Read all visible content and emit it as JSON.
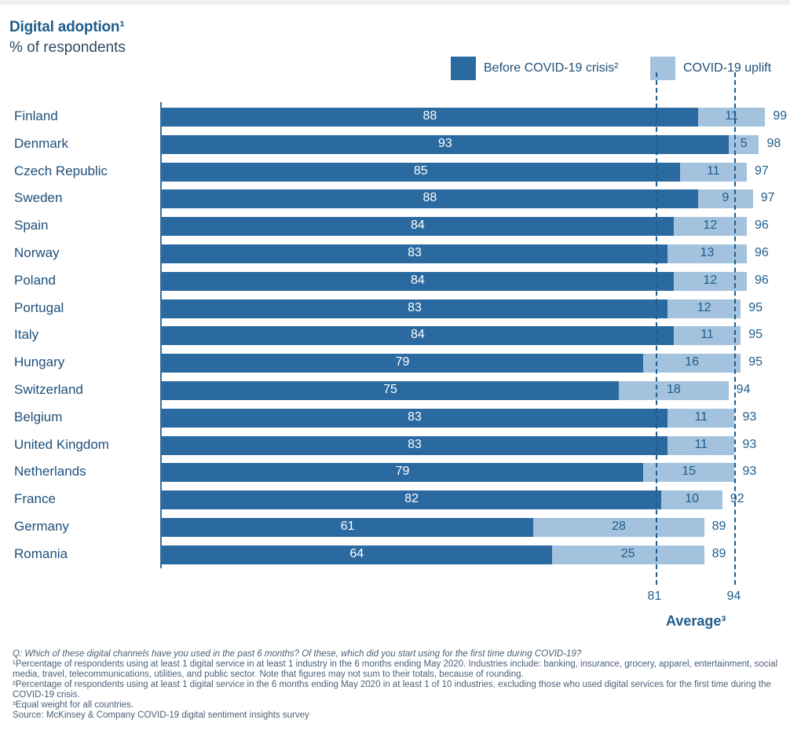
{
  "header": {
    "title": "Digital adoption¹",
    "subtitle": "% of respondents"
  },
  "legend": [
    {
      "label": "Before COVID-19 crisis²",
      "color": "#2b6aa0"
    },
    {
      "label": "COVID-19 uplift",
      "color": "#a3c2de"
    }
  ],
  "chart_data": {
    "type": "bar",
    "orientation": "horizontal",
    "stacked": true,
    "categories": [
      "Finland",
      "Denmark",
      "Czech Republic",
      "Sweden",
      "Spain",
      "Norway",
      "Poland",
      "Portugal",
      "Italy",
      "Hungary",
      "Switzerland",
      "Belgium",
      "United Kingdom",
      "Netherlands",
      "France",
      "Germany",
      "Romania"
    ],
    "series": [
      {
        "name": "Before COVID-19 crisis²",
        "color": "#2b6aa0",
        "values": [
          88,
          93,
          85,
          88,
          84,
          83,
          84,
          83,
          84,
          79,
          75,
          83,
          83,
          79,
          82,
          61,
          64
        ]
      },
      {
        "name": "COVID-19 uplift",
        "color": "#a3c2de",
        "values": [
          11,
          5,
          11,
          9,
          12,
          13,
          12,
          12,
          11,
          16,
          18,
          11,
          11,
          15,
          10,
          28,
          25
        ]
      }
    ],
    "totals": [
      99,
      98,
      97,
      97,
      96,
      96,
      96,
      95,
      95,
      95,
      94,
      93,
      93,
      93,
      92,
      89,
      89
    ],
    "averages": [
      {
        "value": 81,
        "label": "81"
      },
      {
        "value": 94,
        "label": "94"
      }
    ],
    "average_title": "Average³",
    "legend_position": "top-right",
    "grid": false
  },
  "footnotes": {
    "question": "Q: Which of these digital channels have you used in the past 6 months? Of these, which did you start using for the first time during COVID-19?",
    "note1": "¹Percentage of respondents using at least 1 digital service in at least 1 industry in the 6 months ending May 2020. Industries include: banking, insurance, grocery, apparel, entertainment, social media, travel, telecommunications, utilities, and public sector. Note that figures may not sum to their totals, because of rounding.",
    "note2": "²Percentage of respondents using at least 1 digital service in the 6 months ending May 2020 in at least 1 of 10 industries, excluding those who used digital services for the first time during the COVID-19 crisis.",
    "note3": "³Equal weight for all countries.",
    "source": "Source: McKinsey & Company COVID-19 digital sentiment insights survey"
  }
}
